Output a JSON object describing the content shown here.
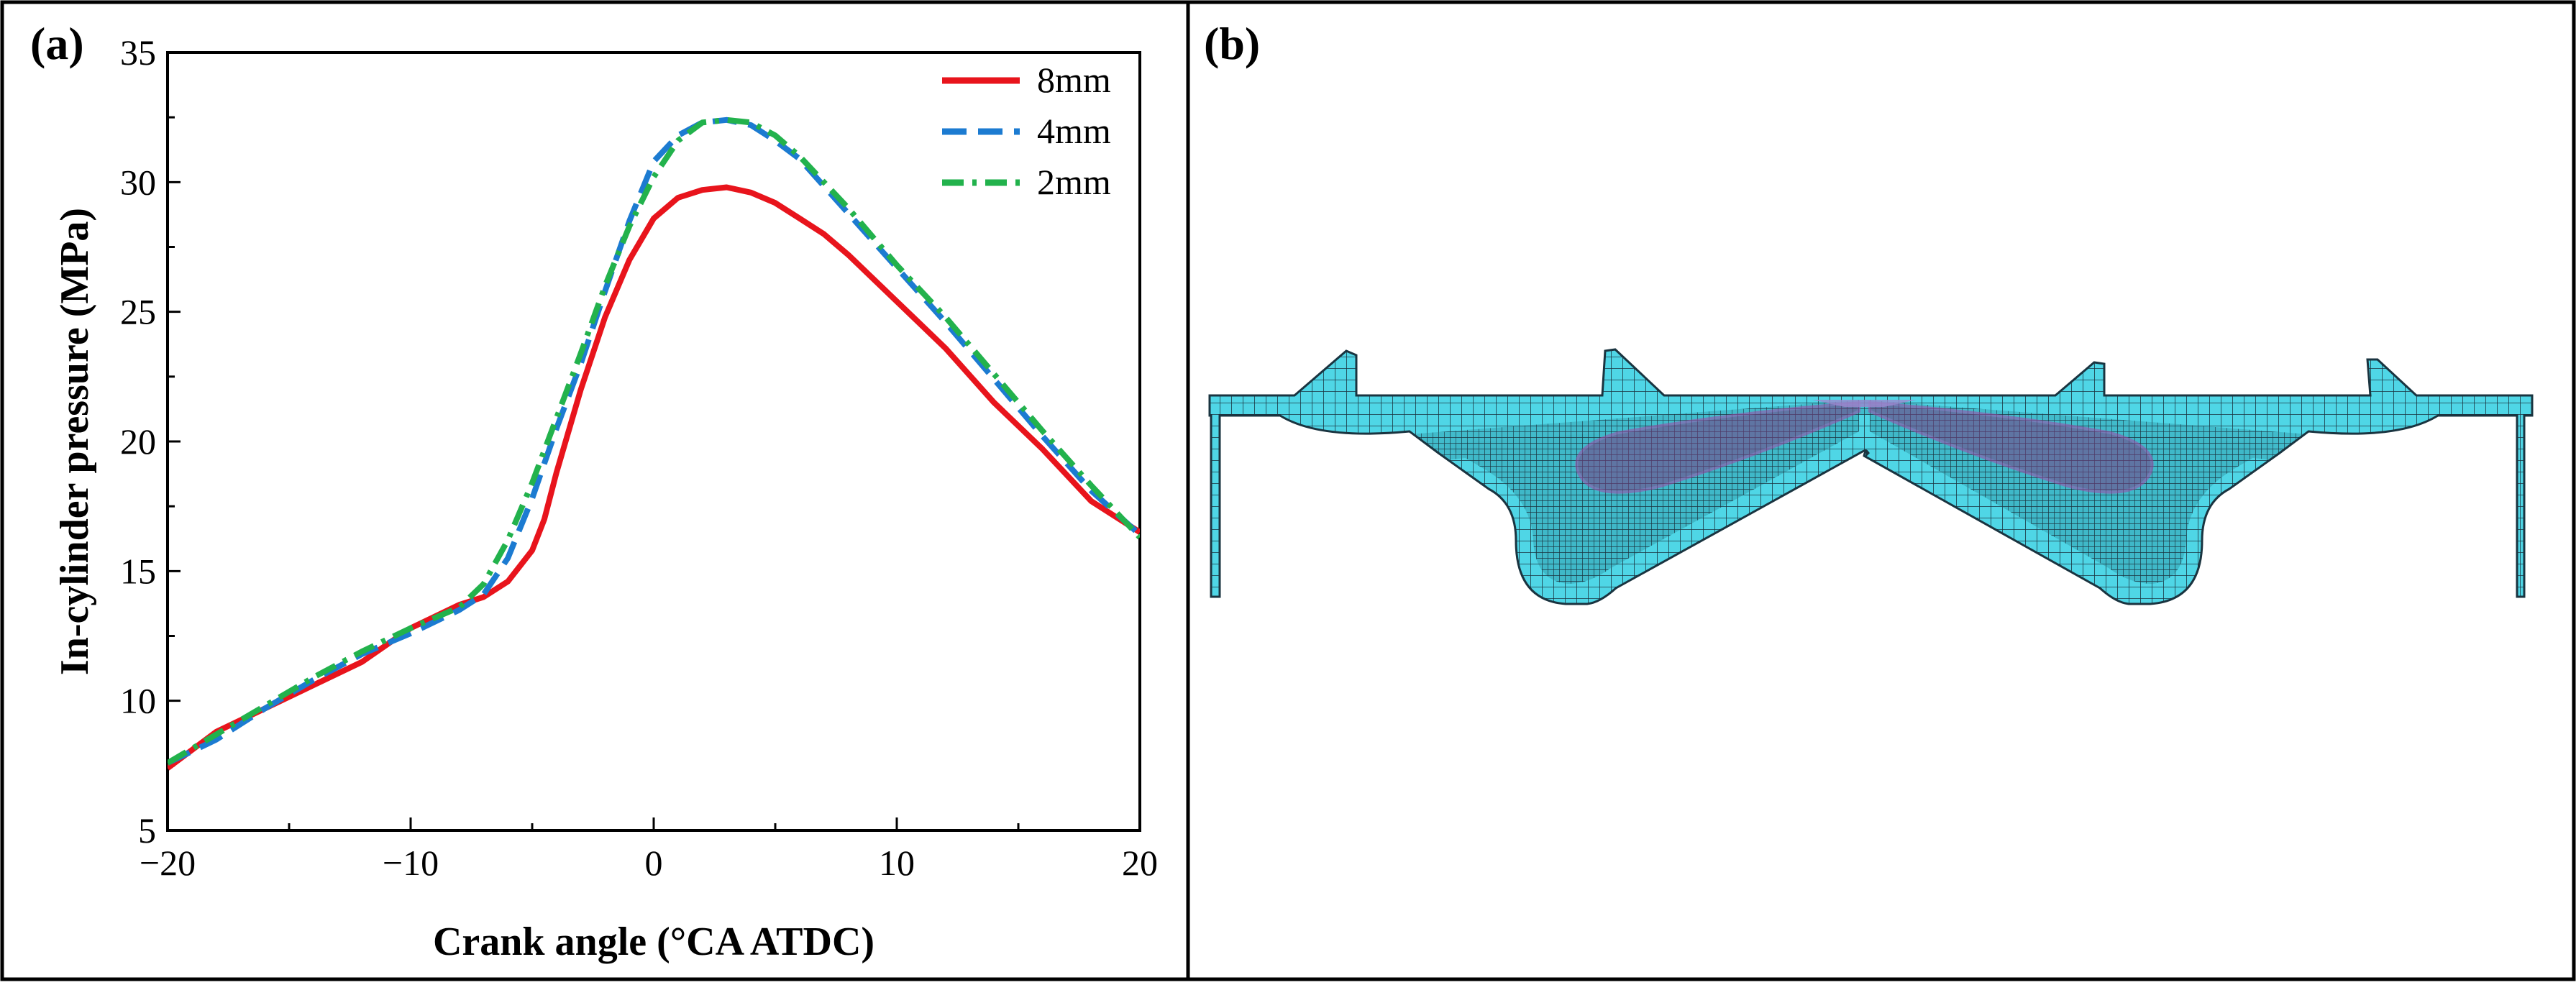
{
  "panels": {
    "a_label": "(a)",
    "b_label": "(b)"
  },
  "colors": {
    "series_8mm": "#e8141c",
    "series_4mm": "#1c7bd1",
    "series_2mm": "#22b24c",
    "mesh_fill": "#4fd6e6",
    "mesh_line": "#1a3440",
    "mesh_dense": "#2b6a76",
    "mesh_purple": "#9a3f9a"
  },
  "chart_data": {
    "type": "line",
    "title": "",
    "xlabel": "Crank angle (°CA ATDC)",
    "ylabel": "In-cylinder pressure (MPa)",
    "xlim": [
      -20,
      20
    ],
    "ylim": [
      5,
      35
    ],
    "xticks": [
      -20,
      -10,
      0,
      10,
      20
    ],
    "xtick_labels": [
      "−20",
      "−10",
      "0",
      "10",
      "20"
    ],
    "yticks": [
      5,
      10,
      15,
      20,
      25,
      30,
      35
    ],
    "ytick_labels": [
      "5",
      "10",
      "15",
      "20",
      "25",
      "30",
      "35"
    ],
    "legend_position": "top-right",
    "series": [
      {
        "name": "8mm",
        "style": "solid",
        "x": [
          -20,
          -18,
          -16,
          -14,
          -12,
          -10,
          -8,
          -7,
          -6,
          -5,
          -4.5,
          -4,
          -3,
          -2,
          -1,
          0,
          1,
          2,
          3,
          4,
          5,
          6,
          7,
          8,
          10,
          12,
          14,
          16,
          18,
          20
        ],
        "y": [
          7.4,
          8.8,
          9.7,
          10.6,
          11.5,
          12.8,
          13.7,
          14.0,
          14.6,
          15.8,
          17.0,
          18.8,
          22.0,
          24.8,
          27.0,
          28.6,
          29.4,
          29.7,
          29.8,
          29.6,
          29.2,
          28.6,
          28.0,
          27.2,
          25.4,
          23.6,
          21.5,
          19.7,
          17.7,
          16.5
        ]
      },
      {
        "name": "4mm",
        "style": "dashed",
        "x": [
          -20,
          -18,
          -16,
          -14,
          -12,
          -10,
          -8,
          -7,
          -6,
          -5,
          -4,
          -3,
          -2,
          -1,
          0,
          1,
          2,
          3,
          4,
          5,
          6,
          8,
          10,
          12,
          14,
          16,
          18,
          20
        ],
        "y": [
          7.6,
          8.5,
          9.7,
          10.8,
          11.8,
          12.6,
          13.5,
          14.1,
          15.5,
          17.8,
          20.5,
          23.0,
          25.8,
          28.5,
          30.8,
          31.8,
          32.3,
          32.4,
          32.2,
          31.6,
          30.9,
          28.8,
          26.7,
          24.6,
          22.4,
          20.2,
          18.1,
          16.4
        ]
      },
      {
        "name": "2mm",
        "style": "dash-dot",
        "x": [
          -20,
          -18,
          -16,
          -14,
          -12,
          -10,
          -8,
          -7,
          -6,
          -5,
          -4,
          -3,
          -2,
          -1,
          0,
          1,
          2,
          3,
          4,
          5,
          6,
          8,
          10,
          12,
          14,
          16,
          18,
          20
        ],
        "y": [
          7.6,
          8.7,
          9.8,
          10.9,
          11.9,
          12.8,
          13.6,
          14.5,
          16.2,
          18.4,
          20.9,
          23.4,
          26.0,
          28.3,
          30.2,
          31.6,
          32.3,
          32.4,
          32.3,
          31.8,
          31.0,
          29.0,
          26.8,
          24.8,
          22.6,
          20.4,
          18.3,
          16.3
        ]
      }
    ]
  }
}
